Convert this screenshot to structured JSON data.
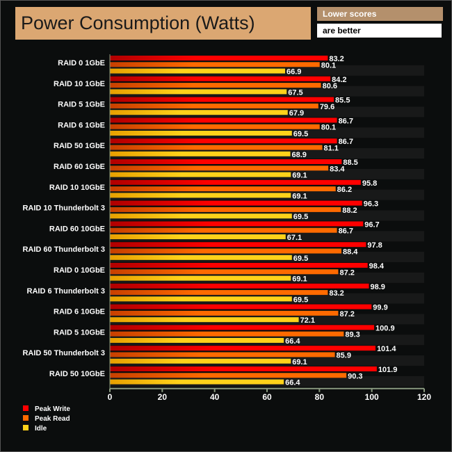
{
  "header": {
    "title": "Power Consumption (Watts)",
    "note_line1": "Lower scores",
    "note_line2": "are better"
  },
  "colors": {
    "peak_write": "#ff0000",
    "peak_read": "#ff6a00",
    "idle": "#ffd21a",
    "label": "#ffffff"
  },
  "chart_data": {
    "type": "bar",
    "orientation": "horizontal",
    "title": "Power Consumption (Watts)",
    "xlim": [
      0,
      120
    ],
    "xticks": [
      0,
      20,
      40,
      60,
      80,
      100,
      120
    ],
    "legend_position": "bottom-left",
    "categories": [
      "RAID 0 1GbE",
      "RAID 10 1GbE",
      "RAID 5 1GbE",
      "RAID 6 1GbE",
      "RAID 50 1GbE",
      "RAID 60 1GbE",
      "RAID 10 10GbE",
      "RAID 10 Thunderbolt 3",
      "RAID 60 10GbE",
      "RAID 60 Thunderbolt 3",
      "RAID 0 10GbE",
      "RAID 6 Thunderbolt 3",
      "RAID 6 10GbE",
      "RAID 5 10GbE",
      "RAID 50 Thunderbolt 3",
      "RAID 50 10GbE"
    ],
    "series": [
      {
        "name": "Peak Write",
        "values": [
          83.2,
          84.2,
          85.5,
          86.7,
          86.7,
          88.5,
          95.8,
          96.3,
          96.7,
          97.8,
          98.4,
          98.9,
          99.9,
          100.9,
          101.4,
          101.9
        ]
      },
      {
        "name": "Peak Read",
        "values": [
          80.1,
          80.6,
          79.6,
          80.1,
          81.1,
          83.4,
          86.2,
          88.2,
          86.7,
          88.4,
          87.2,
          83.2,
          87.2,
          89.3,
          85.9,
          90.3
        ]
      },
      {
        "name": "Idle",
        "values": [
          66.9,
          67.5,
          67.9,
          69.5,
          68.9,
          69.1,
          69.1,
          69.5,
          67.1,
          69.5,
          69.1,
          69.5,
          72.1,
          66.4,
          69.1,
          66.4
        ]
      }
    ]
  }
}
